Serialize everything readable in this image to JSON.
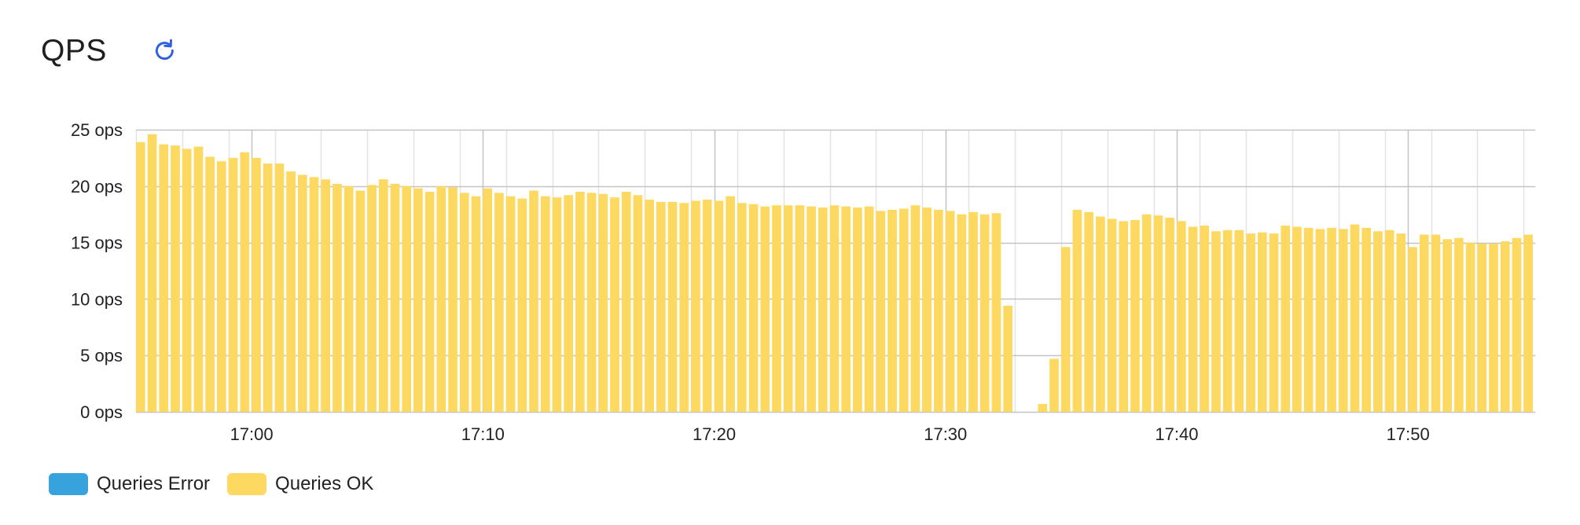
{
  "panel": {
    "title": "QPS",
    "refresh_icon": "refresh-icon"
  },
  "colors": {
    "ok": "#fdd962",
    "error": "#38a2dd",
    "accent": "#2f5fe0",
    "grid_major": "#c4c4c4",
    "grid_minor": "#e4e4e4"
  },
  "legend": [
    {
      "label": "Queries Error",
      "color": "#38a2dd"
    },
    {
      "label": "Queries OK",
      "color": "#fdd962"
    }
  ],
  "chart_data": {
    "type": "bar",
    "title": "",
    "xlabel": "",
    "ylabel": "",
    "ylim": [
      0,
      25
    ],
    "y_unit": "ops",
    "y_ticks": [
      "0 ops",
      "5 ops",
      "10 ops",
      "15 ops",
      "20 ops",
      "25 ops"
    ],
    "x_ticks": [
      "17:00",
      "17:10",
      "17:20",
      "17:30",
      "17:40",
      "17:50"
    ],
    "xlim": [
      "16:55",
      "17:55:30"
    ],
    "interval": "30s",
    "grid": true,
    "legend_position": "bottom-left",
    "series": [
      {
        "name": "Queries Error",
        "values": [
          0,
          0,
          0,
          0,
          0,
          0,
          0,
          0,
          0,
          0,
          0,
          0,
          0,
          0,
          0,
          0,
          0,
          0,
          0,
          0,
          0,
          0,
          0,
          0,
          0,
          0,
          0,
          0,
          0,
          0,
          0,
          0,
          0,
          0,
          0,
          0,
          0,
          0,
          0,
          0,
          0,
          0,
          0,
          0,
          0,
          0,
          0,
          0,
          0,
          0,
          0,
          0,
          0,
          0,
          0,
          0,
          0,
          0,
          0,
          0,
          0,
          0,
          0,
          0,
          0,
          0,
          0,
          0,
          0,
          0,
          0,
          0,
          0,
          0,
          0,
          0,
          0,
          0,
          0,
          0,
          0,
          0,
          0,
          0,
          0,
          0,
          0,
          0,
          0,
          0,
          0,
          0,
          0,
          0,
          0,
          0,
          0,
          0,
          0,
          0,
          0,
          0,
          0,
          0,
          0,
          0,
          0,
          0,
          0,
          0,
          0,
          0,
          0,
          0,
          0,
          0,
          0,
          0,
          0,
          0,
          0,
          0
        ]
      },
      {
        "name": "Queries OK",
        "values": [
          23.9,
          24.6,
          23.7,
          23.6,
          23.3,
          23.5,
          22.6,
          22.2,
          22.5,
          23.0,
          22.5,
          22.0,
          22.0,
          21.3,
          21.0,
          20.8,
          20.6,
          20.2,
          20.0,
          19.6,
          20.1,
          20.6,
          20.2,
          20.0,
          19.8,
          19.5,
          20.0,
          19.9,
          19.4,
          19.1,
          19.8,
          19.4,
          19.1,
          18.9,
          19.6,
          19.1,
          19.0,
          19.2,
          19.5,
          19.4,
          19.3,
          19.0,
          19.5,
          19.2,
          18.8,
          18.6,
          18.6,
          18.5,
          18.7,
          18.8,
          18.7,
          19.1,
          18.5,
          18.4,
          18.2,
          18.3,
          18.3,
          18.3,
          18.2,
          18.1,
          18.3,
          18.2,
          18.1,
          18.2,
          17.8,
          17.9,
          18.0,
          18.3,
          18.1,
          17.9,
          17.8,
          17.5,
          17.7,
          17.5,
          17.6,
          9.4,
          0,
          0,
          0.7,
          4.7,
          14.6,
          17.9,
          17.7,
          17.3,
          17.1,
          16.9,
          17.0,
          17.5,
          17.4,
          17.2,
          16.9,
          16.4,
          16.5,
          16.0,
          16.1,
          16.1,
          15.8,
          15.9,
          15.8,
          16.5,
          16.4,
          16.3,
          16.2,
          16.3,
          16.2,
          16.6,
          16.3,
          16.0,
          16.1,
          15.8,
          14.6,
          15.7,
          15.7,
          15.3,
          15.4,
          15.0,
          14.9,
          14.9,
          15.1,
          15.4,
          15.7
        ]
      }
    ]
  }
}
